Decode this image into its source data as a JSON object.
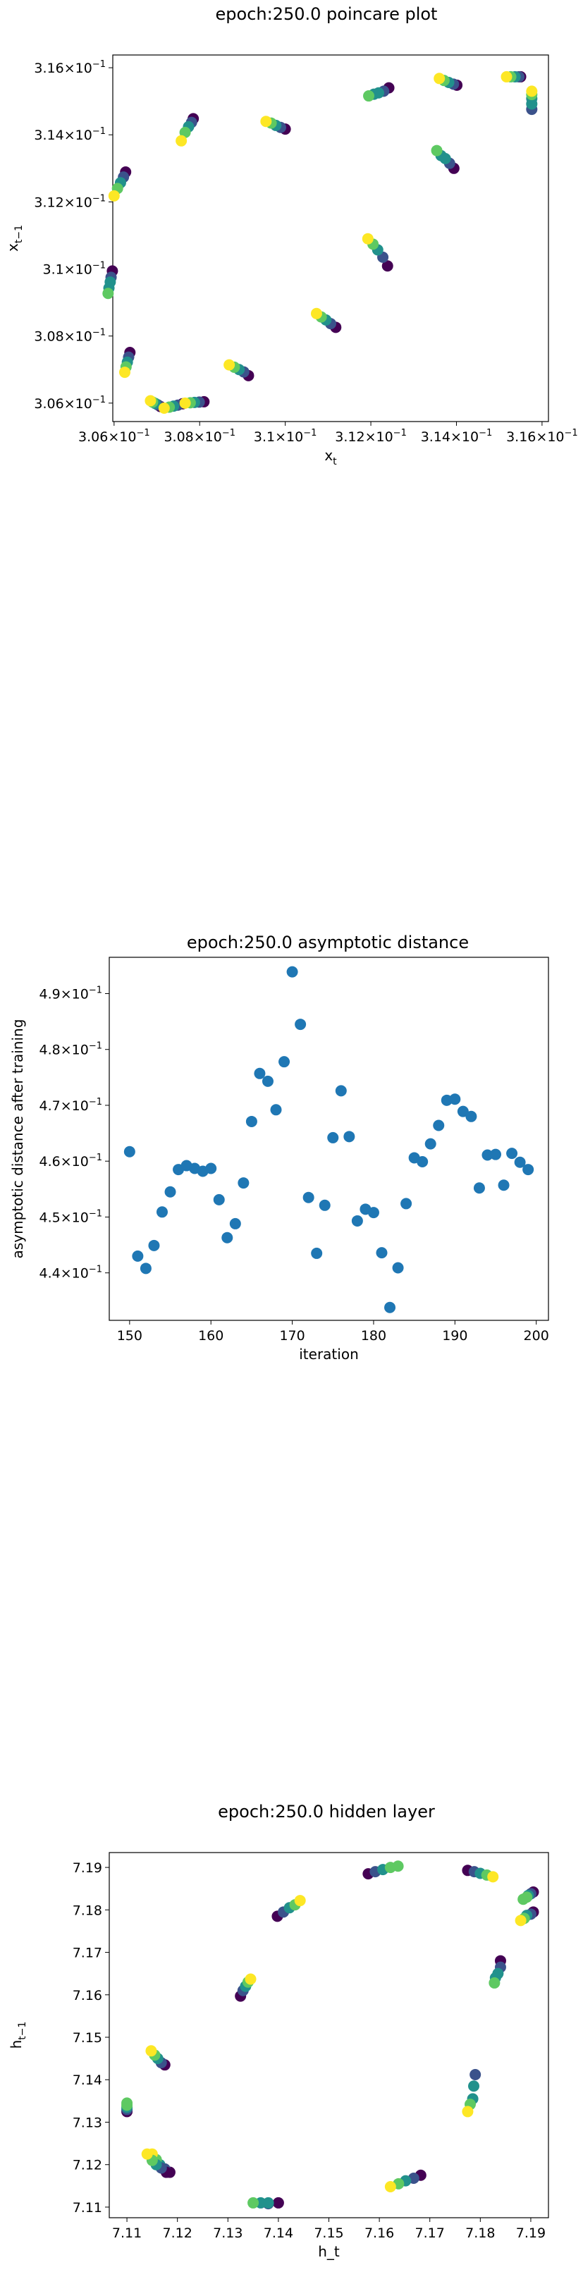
{
  "colors": {
    "purple": "#440154",
    "indigo": "#3b528b",
    "teal": "#21918c",
    "green": "#5ec962",
    "yellow": "#fde725",
    "blue": "#1f77b4"
  },
  "chart_data": [
    {
      "type": "scatter",
      "title": "epoch:250.0 poincare plot",
      "xlabel": "x_t",
      "ylabel": "x_{t-1}",
      "xlim": [
        0.30597,
        0.31615
      ],
      "ylim": [
        0.30545,
        0.31638
      ],
      "xticks": [
        0.306,
        0.308,
        0.31,
        0.312,
        0.314,
        0.316
      ],
      "yticks": [
        0.306,
        0.308,
        0.31,
        0.312,
        0.314,
        0.316
      ],
      "xtick_labels": [
        [
          "3.06",
          "−1"
        ],
        [
          "3.08",
          "−1"
        ],
        [
          "3.1",
          "−1"
        ],
        [
          "3.12",
          "−1"
        ],
        [
          "3.14",
          "−1"
        ],
        [
          "3.16",
          "−1"
        ]
      ],
      "ytick_labels": [
        [
          "3.06",
          "−1"
        ],
        [
          "3.08",
          "−1"
        ],
        [
          "3.1",
          "−1"
        ],
        [
          "3.12",
          "−1"
        ],
        [
          "3.14",
          "−1"
        ],
        [
          "3.16",
          "−1"
        ]
      ],
      "color_scale": "viridis",
      "x": [
        0.30708,
        0.30702,
        0.30696,
        0.3069,
        0.30685,
        0.3076,
        0.30749,
        0.30739,
        0.30729,
        0.30717,
        0.3081,
        0.30799,
        0.30788,
        0.30778,
        0.30766,
        0.30914,
        0.30903,
        0.30892,
        0.30881,
        0.30869,
        0.31118,
        0.31106,
        0.31095,
        0.31084,
        0.31073,
        0.31239,
        0.31228,
        0.31216,
        0.31205,
        0.31193,
        0.31401,
        0.31393,
        0.31382,
        0.31371,
        0.3136,
        0.3155,
        0.31546,
        0.31537,
        0.31527,
        0.31517,
        0.31576,
        0.31576,
        0.31576,
        0.31576,
        0.31576,
        0.31394,
        0.31384,
        0.31374,
        0.31364,
        0.31354,
        0.31242,
        0.3123,
        0.31218,
        0.31207,
        0.31195,
        0.31,
        0.30989,
        0.30978,
        0.30967,
        0.30955,
        0.30785,
        0.30781,
        0.30774,
        0.30766,
        0.30757,
        0.30627,
        0.30622,
        0.30615,
        0.30608,
        0.306,
        0.30596,
        0.30593,
        0.30591,
        0.30588,
        0.30586,
        0.30637,
        0.30634,
        0.30631,
        0.30628,
        0.30625
      ],
      "y": [
        0.3059,
        0.30595,
        0.30599,
        0.30603,
        0.30607,
        0.30598,
        0.30594,
        0.30591,
        0.30588,
        0.30585,
        0.30604,
        0.30603,
        0.30602,
        0.30601,
        0.306,
        0.30682,
        0.30693,
        0.307,
        0.30707,
        0.30714,
        0.30826,
        0.30837,
        0.30848,
        0.30857,
        0.30867,
        0.31009,
        0.31035,
        0.31057,
        0.31074,
        0.3109,
        0.31548,
        0.31551,
        0.31556,
        0.31562,
        0.31568,
        0.31573,
        0.31573,
        0.31573,
        0.31573,
        0.31573,
        0.31476,
        0.31492,
        0.31508,
        0.3152,
        0.3153,
        0.313,
        0.31315,
        0.31329,
        0.31338,
        0.31353,
        0.3154,
        0.3153,
        0.31525,
        0.31521,
        0.31516,
        0.31417,
        0.31422,
        0.31428,
        0.31435,
        0.3144,
        0.31448,
        0.31437,
        0.31424,
        0.31407,
        0.31382,
        0.31289,
        0.31274,
        0.31257,
        0.3124,
        0.31218,
        0.30994,
        0.30975,
        0.30961,
        0.30943,
        0.30927,
        0.30751,
        0.30737,
        0.30722,
        0.30708,
        0.30692
      ],
      "colors": [
        "purple",
        "indigo",
        "teal",
        "green",
        "yellow",
        "purple",
        "indigo",
        "teal",
        "green",
        "yellow",
        "purple",
        "indigo",
        "teal",
        "green",
        "yellow",
        "purple",
        "indigo",
        "teal",
        "green",
        "yellow",
        "purple",
        "indigo",
        "teal",
        "green",
        "yellow",
        "purple",
        "indigo",
        "teal",
        "green",
        "yellow",
        "purple",
        "indigo",
        "teal",
        "green",
        "yellow",
        "purple",
        "indigo",
        "teal",
        "green",
        "yellow",
        "indigo",
        "teal",
        "teal",
        "green",
        "yellow",
        "purple",
        "indigo",
        "teal",
        "teal",
        "green",
        "purple",
        "indigo",
        "teal",
        "teal",
        "green",
        "purple",
        "indigo",
        "teal",
        "green",
        "yellow",
        "purple",
        "indigo",
        "teal",
        "green",
        "yellow",
        "purple",
        "indigo",
        "teal",
        "green",
        "yellow",
        "purple",
        "indigo",
        "teal",
        "teal",
        "green",
        "purple",
        "indigo",
        "teal",
        "green",
        "yellow"
      ]
    },
    {
      "type": "scatter",
      "title": "epoch:250.0 asymptotic distance",
      "xlabel": "iteration",
      "ylabel": "asymptotic distance after training",
      "xlim": [
        147.5,
        201.5
      ],
      "ylim": [
        0.4315,
        0.4965
      ],
      "xticks": [
        150,
        160,
        170,
        180,
        190,
        200
      ],
      "xtick_labels": [
        "150",
        "160",
        "170",
        "180",
        "190",
        "200"
      ],
      "yticks": [
        0.44,
        0.45,
        0.46,
        0.47,
        0.48,
        0.49
      ],
      "ytick_labels": [
        [
          "4.4",
          "−1"
        ],
        [
          "4.5",
          "−1"
        ],
        [
          "4.6",
          "−1"
        ],
        [
          "4.7",
          "−1"
        ],
        [
          "4.8",
          "−1"
        ],
        [
          "4.9",
          "−1"
        ]
      ],
      "series": [
        {
          "x": [
            150,
            151,
            152,
            153,
            154,
            155,
            156,
            157,
            158,
            159,
            160,
            161,
            162,
            163,
            164,
            165,
            166,
            167,
            168,
            169,
            170,
            171,
            172,
            173,
            174,
            175,
            176,
            177,
            178,
            179,
            180,
            181,
            182,
            183,
            184,
            185,
            186,
            187,
            188,
            189,
            190,
            191,
            192,
            193,
            194,
            195,
            196,
            197,
            198,
            199
          ],
          "values": [
            0.4617,
            0.443,
            0.4408,
            0.4449,
            0.4509,
            0.4545,
            0.4585,
            0.4592,
            0.4587,
            0.4582,
            0.4587,
            0.4531,
            0.4463,
            0.4488,
            0.4561,
            0.4671,
            0.4757,
            0.4743,
            0.4692,
            0.4778,
            0.4939,
            0.4845,
            0.4535,
            0.4435,
            0.4521,
            0.4642,
            0.4726,
            0.4644,
            0.4493,
            0.4514,
            0.4508,
            0.4436,
            0.4338,
            0.4409,
            0.4524,
            0.4606,
            0.4599,
            0.4631,
            0.4664,
            0.4709,
            0.4711,
            0.4689,
            0.468,
            0.4552,
            0.4611,
            0.4612,
            0.4557,
            0.4614,
            0.4598,
            0.4585
          ]
        }
      ]
    },
    {
      "type": "scatter",
      "title": "epoch:250.0 hidden layer",
      "xlabel": "h_t",
      "ylabel": "h_{t-1}",
      "xlim": [
        7.1065,
        7.1935
      ],
      "ylim": [
        7.1075,
        7.1935
      ],
      "xticks": [
        7.11,
        7.12,
        7.13,
        7.14,
        7.15,
        7.16,
        7.17,
        7.18,
        7.19
      ],
      "xtick_labels": [
        "7.11",
        "7.12",
        "7.13",
        "7.14",
        "7.15",
        "7.16",
        "7.17",
        "7.18",
        "7.19"
      ],
      "yticks": [
        7.11,
        7.12,
        7.13,
        7.14,
        7.15,
        7.16,
        7.17,
        7.18,
        7.19
      ],
      "ytick_labels": [
        "7.11",
        "7.12",
        "7.13",
        "7.14",
        "7.15",
        "7.16",
        "7.17",
        "7.18",
        "7.19"
      ],
      "color_scale": "viridis",
      "x": [
        7.11,
        7.11,
        7.11,
        7.11,
        7.11,
        7.1175,
        7.1168,
        7.1161,
        7.1155,
        7.1148,
        7.1185,
        7.1175,
        7.1165,
        7.1158,
        7.115,
        7.1325,
        7.133,
        7.1335,
        7.134,
        7.1345,
        7.1398,
        7.141,
        7.1422,
        7.1433,
        7.1443,
        7.1578,
        7.1592,
        7.1607,
        7.1622,
        7.1637,
        7.1775,
        7.1788,
        7.18,
        7.1813,
        7.1825,
        7.1905,
        7.19,
        7.1895,
        7.1892,
        7.1885,
        7.1905,
        7.19,
        7.1892,
        7.1887,
        7.188,
        7.184,
        7.184,
        7.1835,
        7.183,
        7.1828,
        7.179,
        7.1787,
        7.1785,
        7.178,
        7.1775,
        7.1682,
        7.1668,
        7.1652,
        7.1638,
        7.1622,
        7.14,
        7.138,
        7.138,
        7.1365,
        7.135,
        7.1178,
        7.1168,
        7.1158,
        7.115,
        7.114
      ],
      "y": [
        7.1325,
        7.133,
        7.1335,
        7.134,
        7.1345,
        7.1435,
        7.144,
        7.145,
        7.1458,
        7.1468,
        7.1182,
        7.119,
        7.12,
        7.1212,
        7.1225,
        7.1597,
        7.161,
        7.162,
        7.163,
        7.1637,
        7.1785,
        7.1795,
        7.1805,
        7.1812,
        7.1822,
        7.1885,
        7.189,
        7.1895,
        7.19,
        7.1903,
        7.1893,
        7.189,
        7.1886,
        7.1882,
        7.1878,
        7.1842,
        7.1838,
        7.1834,
        7.183,
        7.1825,
        7.1795,
        7.179,
        7.1787,
        7.178,
        7.1775,
        7.168,
        7.1665,
        7.165,
        7.164,
        7.1628,
        7.1412,
        7.1385,
        7.1355,
        7.1342,
        7.1325,
        7.1175,
        7.1168,
        7.1162,
        7.1155,
        7.1148,
        7.111,
        7.1108,
        7.111,
        7.111,
        7.111,
        7.1182,
        7.1192,
        7.12,
        7.121,
        7.1225
      ],
      "colors": [
        "purple",
        "indigo",
        "teal",
        "green",
        "green",
        "purple",
        "indigo",
        "teal",
        "green",
        "yellow",
        "purple",
        "indigo",
        "teal",
        "green",
        "yellow",
        "purple",
        "indigo",
        "teal",
        "green",
        "yellow",
        "purple",
        "indigo",
        "teal",
        "green",
        "yellow",
        "purple",
        "indigo",
        "teal",
        "green",
        "green",
        "purple",
        "indigo",
        "teal",
        "green",
        "yellow",
        "purple",
        "indigo",
        "teal",
        "green",
        "green",
        "purple",
        "indigo",
        "teal",
        "green",
        "yellow",
        "purple",
        "indigo",
        "teal",
        "teal",
        "green",
        "indigo",
        "teal",
        "teal",
        "green",
        "yellow",
        "purple",
        "indigo",
        "teal",
        "green",
        "yellow",
        "purple",
        "indigo",
        "teal",
        "teal",
        "green",
        "purple",
        "indigo",
        "teal",
        "green",
        "yellow"
      ]
    }
  ]
}
